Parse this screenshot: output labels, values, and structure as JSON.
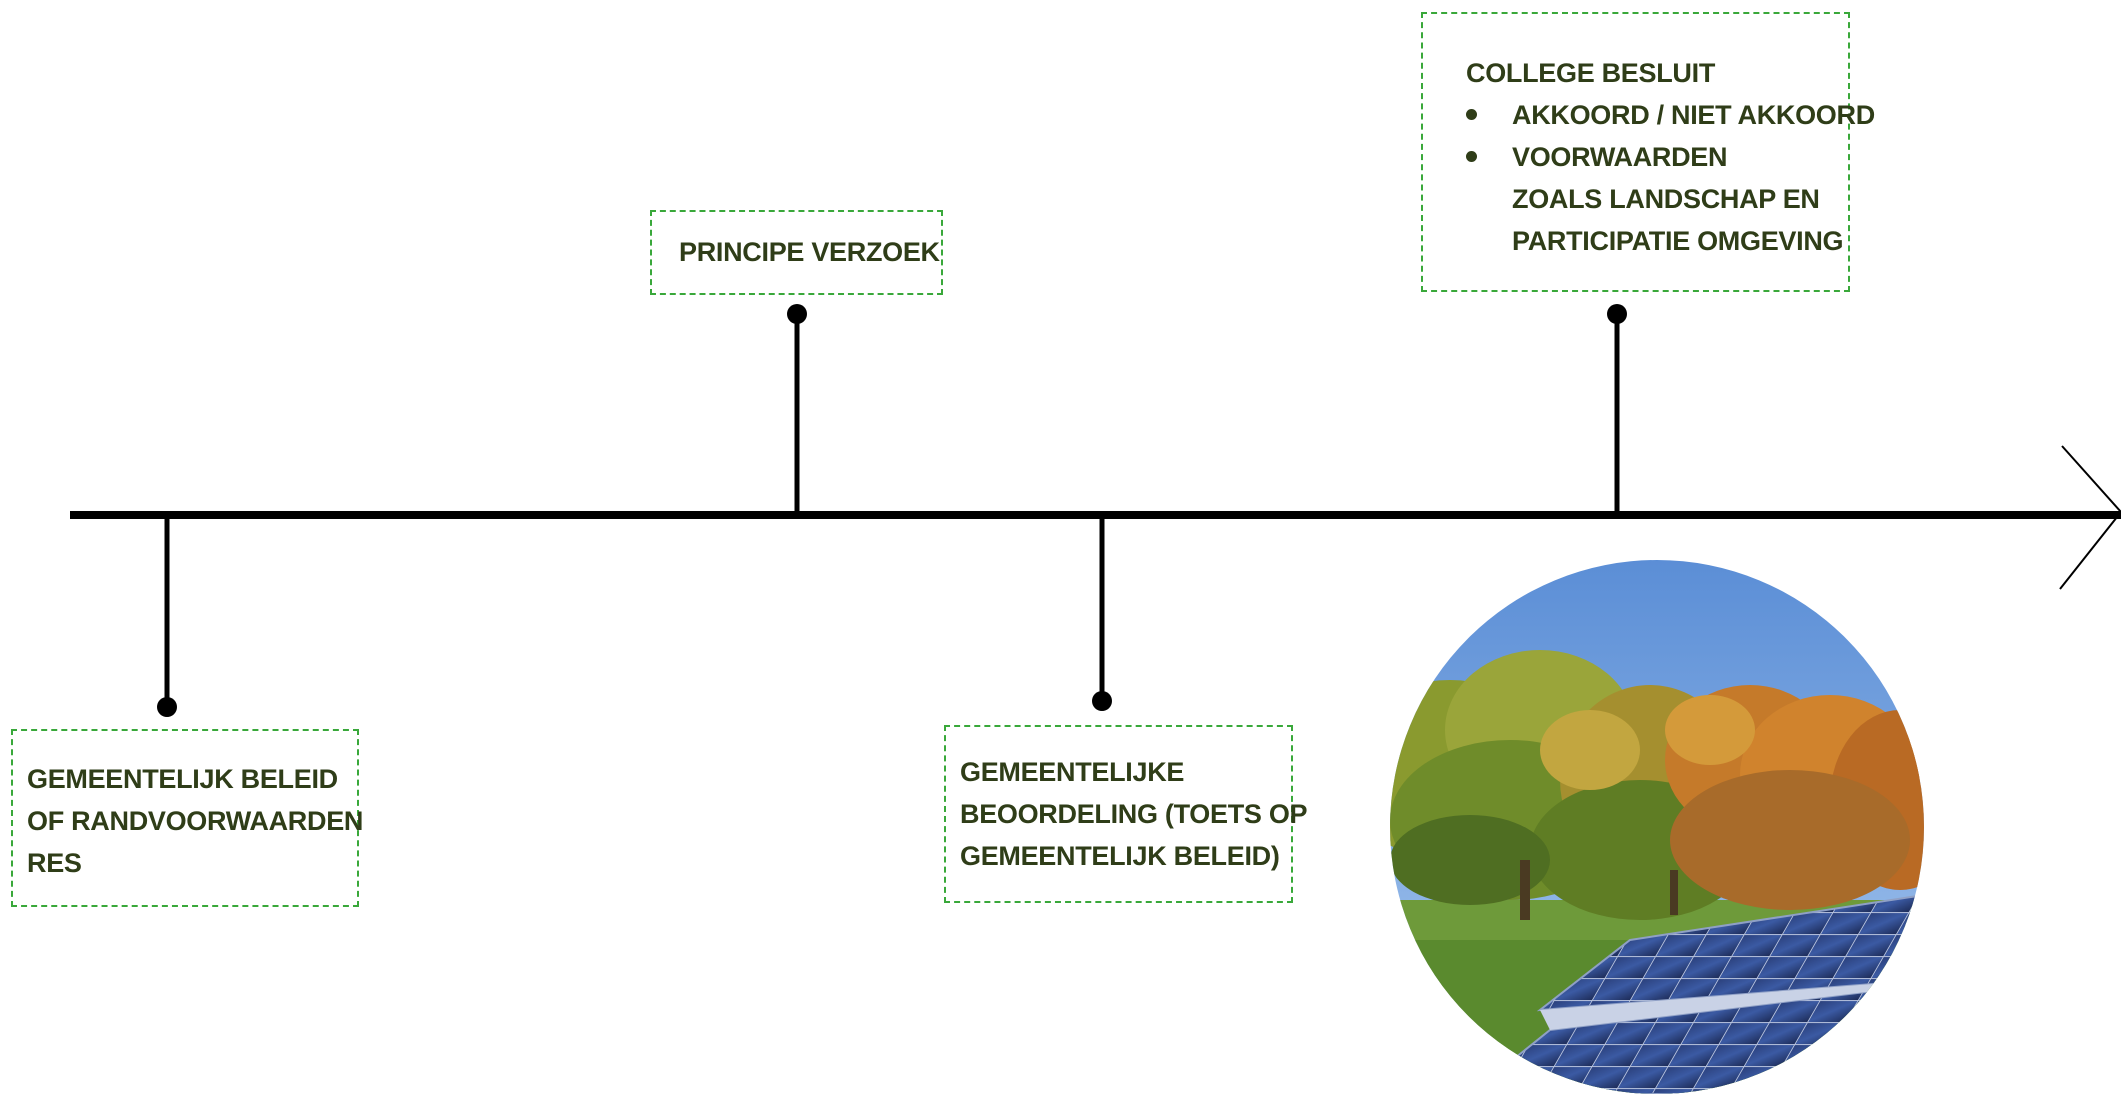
{
  "milestones": {
    "beleid": {
      "lines": [
        "GEMEENTELIJK BELEID",
        "OF RANDVOORWAARDEN",
        "RES"
      ]
    },
    "principe": {
      "lines": [
        "PRINCIPE VERZOEK"
      ]
    },
    "beoordeling": {
      "lines": [
        "GEMEENTELIJKE",
        "BEOORDELING (TOETS OP",
        "GEMEENTELIJK BELEID)"
      ]
    },
    "besluit": {
      "title": "COLLEGE BESLUIT",
      "bullets": [
        {
          "lines": [
            "AKKOORD / NIET AKKOORD"
          ]
        },
        {
          "lines": [
            "VOORWAARDEN",
            "ZOALS LANDSCHAP EN",
            "PARTICIPATIE OMGEVING"
          ]
        }
      ]
    }
  },
  "colors": {
    "text": "#2f3d18",
    "box_border": "#39a83a",
    "line": "#000000"
  }
}
